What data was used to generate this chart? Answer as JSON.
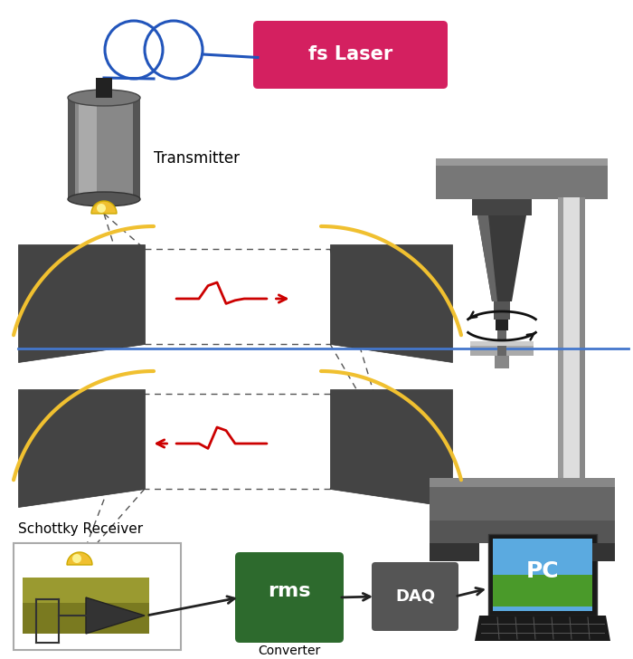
{
  "bg_color": "#ffffff",
  "laser_color": "#d42060",
  "laser_text": "fs Laser",
  "transmitter_label": "Transmitter",
  "schottky_label": "Schottky Receiver",
  "rms_text": "rms",
  "converter_text": "Converter",
  "daq_text": "DAQ",
  "pc_text": "PC",
  "mirror_color": "#444444",
  "yellow_arc": "#f0c030",
  "dash_color": "#555555",
  "pulse_color": "#cc0000",
  "coil_color": "#2255bb",
  "transmitter_gray": "#888888",
  "stand_gray": "#666666",
  "silver": "#aaaaaa",
  "rms_color": "#2d6a2d",
  "daq_color": "#555555"
}
